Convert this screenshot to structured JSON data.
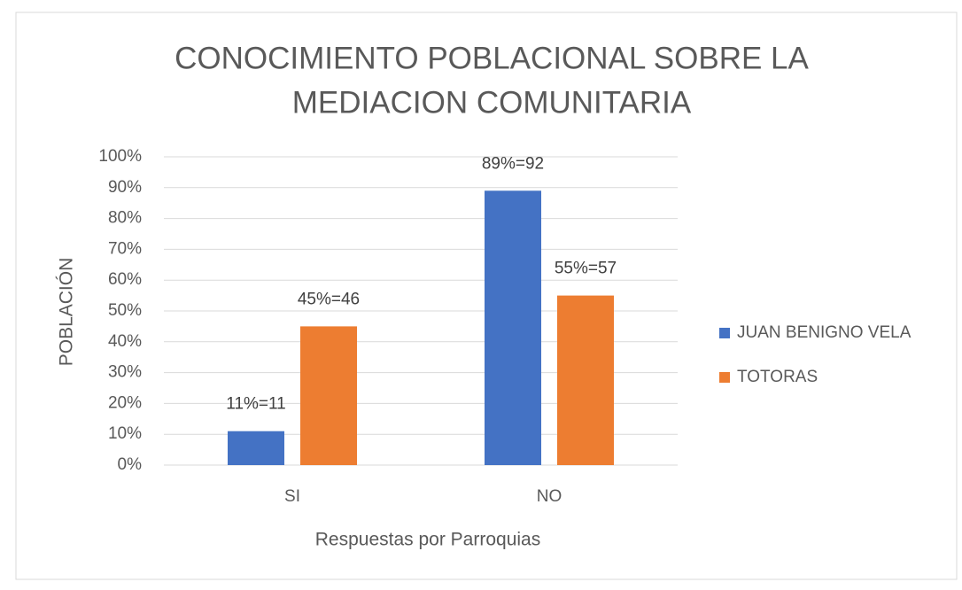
{
  "chart_data": {
    "type": "bar",
    "title": [
      "CONOCIMIENTO POBLACIONAL SOBRE LA",
      "MEDIACION COMUNITARIA"
    ],
    "x_label": "Respuestas por Parroquias",
    "y_label": "POBLACIÓN",
    "categories": [
      "SI",
      "NO"
    ],
    "series": [
      {
        "name": "JUAN BENIGNO VELA",
        "color": "#4472c4",
        "values": [
          11,
          89
        ],
        "value_labels": [
          "11%=11",
          "89%=92"
        ]
      },
      {
        "name": "TOTORAS",
        "color": "#ed7d31",
        "values": [
          45,
          55
        ],
        "value_labels": [
          "45%=46",
          "55%=57"
        ]
      }
    ],
    "ylim": [
      0,
      100
    ],
    "yticks": [
      {
        "value": 0,
        "label": "0%"
      },
      {
        "value": 10,
        "label": "10%"
      },
      {
        "value": 20,
        "label": "20%"
      },
      {
        "value": 30,
        "label": "30%"
      },
      {
        "value": 40,
        "label": "40%"
      },
      {
        "value": 50,
        "label": "50%"
      },
      {
        "value": 60,
        "label": "60%"
      },
      {
        "value": 70,
        "label": "70%"
      },
      {
        "value": 80,
        "label": "80%"
      },
      {
        "value": 90,
        "label": "90%"
      },
      {
        "value": 100,
        "label": "100%"
      }
    ],
    "grid": true,
    "legend": "right"
  }
}
